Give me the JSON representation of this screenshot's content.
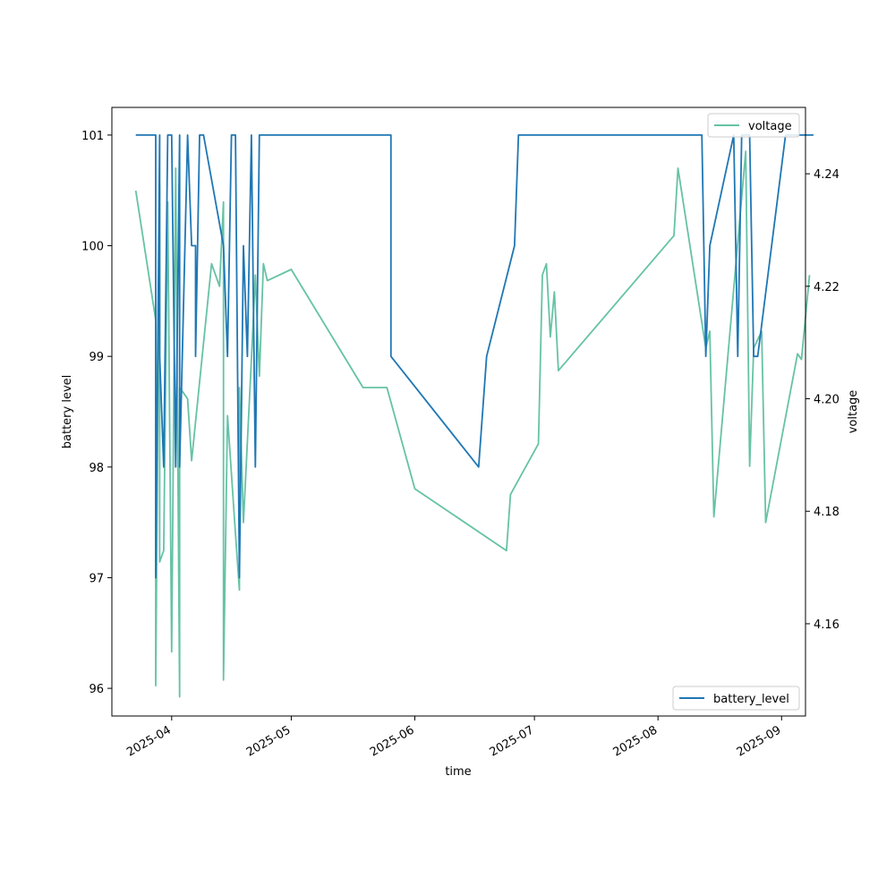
{
  "chart_data": {
    "type": "line",
    "title": "",
    "xlabel": "time",
    "ylabel_left": "battery level",
    "ylabel_right": "voltage",
    "x_ticks": [
      {
        "date": "2025-04-01",
        "label": "2025-04"
      },
      {
        "date": "2025-05-01",
        "label": "2025-05"
      },
      {
        "date": "2025-06-01",
        "label": "2025-06"
      },
      {
        "date": "2025-07-01",
        "label": "2025-07"
      },
      {
        "date": "2025-08-01",
        "label": "2025-08"
      },
      {
        "date": "2025-09-01",
        "label": "2025-09"
      }
    ],
    "xlim": [
      "2025-03-17",
      "2025-09-07"
    ],
    "ylim_left": [
      95.75,
      101.25
    ],
    "ylim_right": [
      4.1436,
      4.2518
    ],
    "y_ticks_left": [
      96,
      97,
      98,
      99,
      100,
      101
    ],
    "y_ticks_right": [
      4.16,
      4.18,
      4.2,
      4.22,
      4.24
    ],
    "y_tick_labels_right": [
      "4.16",
      "4.18",
      "4.20",
      "4.22",
      "4.24"
    ],
    "grid": false,
    "series": [
      {
        "name": "battery_level",
        "axis": "left",
        "color": "#1f77b4",
        "legend_position": "lower-right",
        "x": [
          "2025-03-23",
          "2025-03-28",
          "2025-03-28",
          "2025-03-29",
          "2025-03-29",
          "2025-03-30",
          "2025-03-30",
          "2025-03-31",
          "2025-04-01",
          "2025-04-02",
          "2025-04-02",
          "2025-04-03",
          "2025-04-03",
          "2025-04-05",
          "2025-04-06",
          "2025-04-07",
          "2025-04-07",
          "2025-04-08",
          "2025-04-09",
          "2025-04-14",
          "2025-04-15",
          "2025-04-16",
          "2025-04-17",
          "2025-04-17",
          "2025-04-18",
          "2025-04-19",
          "2025-04-19",
          "2025-04-20",
          "2025-04-21",
          "2025-04-22",
          "2025-04-23",
          "2025-04-23",
          "2025-04-24",
          "2025-04-25",
          "2025-05-26",
          "2025-05-26",
          "2025-06-17",
          "2025-06-19",
          "2025-06-26",
          "2025-06-27",
          "2025-08-12",
          "2025-08-13",
          "2025-08-14",
          "2025-08-20",
          "2025-08-21",
          "2025-08-22",
          "2025-08-23",
          "2025-08-24",
          "2025-08-25",
          "2025-08-26",
          "2025-09-02",
          "2025-09-09"
        ],
        "y": [
          101,
          101,
          97,
          101,
          99,
          98,
          98,
          101,
          101,
          98,
          98,
          101,
          98,
          101,
          100,
          100,
          99,
          101,
          101,
          100,
          99,
          101,
          101,
          101,
          97,
          100,
          100,
          99,
          101,
          98,
          101,
          101,
          101,
          101,
          101,
          99,
          98,
          99,
          100,
          101,
          101,
          99,
          100,
          101,
          99,
          101,
          101,
          101,
          99,
          99,
          101,
          101
        ]
      },
      {
        "name": "voltage",
        "axis": "right",
        "color": "#66c2a5",
        "legend_position": "upper-right",
        "x": [
          "2025-03-23",
          "2025-03-28",
          "2025-03-28",
          "2025-03-29",
          "2025-03-29",
          "2025-03-30",
          "2025-03-31",
          "2025-04-01",
          "2025-04-02",
          "2025-04-03",
          "2025-04-03",
          "2025-04-04",
          "2025-04-05",
          "2025-04-06",
          "2025-04-11",
          "2025-04-13",
          "2025-04-14",
          "2025-04-14",
          "2025-04-15",
          "2025-04-17",
          "2025-04-18",
          "2025-04-18",
          "2025-04-19",
          "2025-04-21",
          "2025-04-22",
          "2025-04-23",
          "2025-04-23",
          "2025-04-24",
          "2025-04-25",
          "2025-05-01",
          "2025-05-19",
          "2025-05-25",
          "2025-06-01",
          "2025-06-01",
          "2025-06-24",
          "2025-06-25",
          "2025-07-02",
          "2025-07-03",
          "2025-07-04",
          "2025-07-05",
          "2025-07-06",
          "2025-07-07",
          "2025-08-05",
          "2025-08-06",
          "2025-08-13",
          "2025-08-14",
          "2025-08-15",
          "2025-08-23",
          "2025-08-24",
          "2025-08-25",
          "2025-08-27",
          "2025-08-28",
          "2025-09-05",
          "2025-09-06",
          "2025-09-08"
        ],
        "y": [
          4.237,
          4.214,
          4.149,
          4.238,
          4.171,
          4.173,
          4.235,
          4.155,
          4.241,
          4.147,
          4.202,
          4.201,
          4.2,
          4.189,
          4.224,
          4.22,
          4.235,
          4.15,
          4.197,
          4.176,
          4.166,
          4.202,
          4.178,
          4.207,
          4.222,
          4.204,
          4.204,
          4.224,
          4.221,
          4.223,
          4.202,
          4.202,
          4.184,
          4.184,
          4.173,
          4.183,
          4.192,
          4.222,
          4.224,
          4.211,
          4.219,
          4.205,
          4.229,
          4.241,
          4.209,
          4.212,
          4.179,
          4.244,
          4.188,
          4.209,
          4.212,
          4.178,
          4.208,
          4.207,
          4.222
        ]
      }
    ]
  }
}
